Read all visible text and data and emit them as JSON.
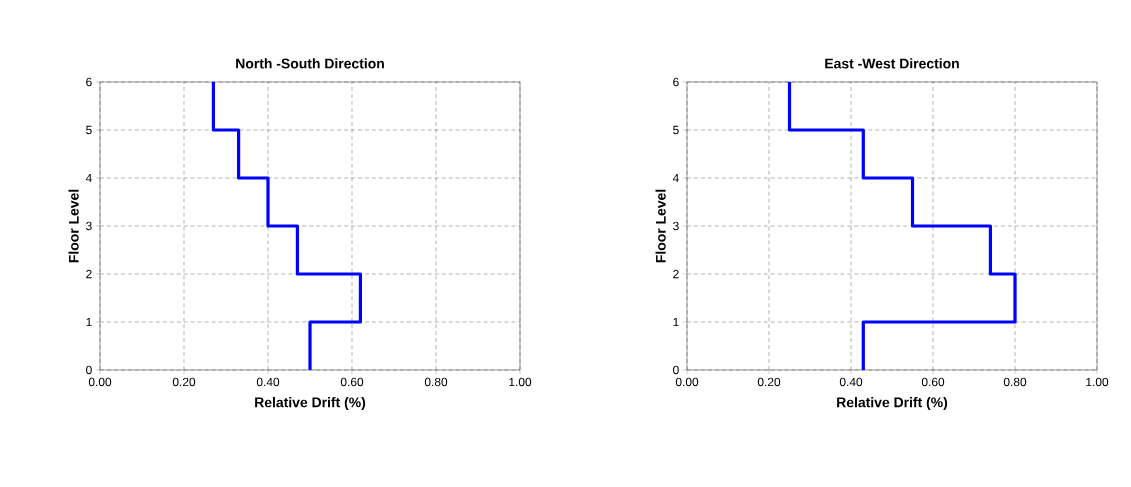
{
  "chart_data": [
    {
      "type": "line",
      "title": "North -South Direction",
      "xlabel": "Relative Drift (%)",
      "ylabel": "Floor Level",
      "x": [
        0.5,
        0.5,
        0.62,
        0.62,
        0.47,
        0.47,
        0.4,
        0.4,
        0.33,
        0.33,
        0.27,
        0.27
      ],
      "values": [
        0,
        1,
        1,
        2,
        2,
        3,
        3,
        4,
        4,
        5,
        5,
        6
      ],
      "color": "#0000ff",
      "line_style": "solid",
      "grid": true,
      "xlim": [
        0,
        1
      ],
      "ylim": [
        0,
        6
      ],
      "xticks": [
        {
          "value": 0,
          "label": "0.00"
        },
        {
          "value": 0.2,
          "label": "0.20"
        },
        {
          "value": 0.4,
          "label": "0.40"
        },
        {
          "value": 0.6,
          "label": "0.60"
        },
        {
          "value": 0.8,
          "label": "0.80"
        },
        {
          "value": 1,
          "label": "1.00"
        }
      ],
      "yticks": [
        0,
        1,
        2,
        3,
        4,
        5,
        6
      ]
    },
    {
      "type": "line",
      "title": "East -West Direction",
      "xlabel": "Relative Drift (%)",
      "ylabel": "Floor Level",
      "x": [
        0.43,
        0.43,
        0.8,
        0.8,
        0.74,
        0.74,
        0.55,
        0.55,
        0.43,
        0.43,
        0.25,
        0.25
      ],
      "values": [
        0,
        1,
        1,
        2,
        2,
        3,
        3,
        4,
        4,
        5,
        5,
        6
      ],
      "color": "#0000ff",
      "line_style": "solid",
      "grid": true,
      "xlim": [
        0,
        1
      ],
      "ylim": [
        0,
        6
      ],
      "xticks": [
        {
          "value": 0,
          "label": "0.00"
        },
        {
          "value": 0.2,
          "label": "0.20"
        },
        {
          "value": 0.4,
          "label": "0.40"
        },
        {
          "value": 0.6,
          "label": "0.60"
        },
        {
          "value": 0.8,
          "label": "0.80"
        },
        {
          "value": 1,
          "label": "1.00"
        }
      ],
      "yticks": [
        0,
        1,
        2,
        3,
        4,
        5,
        6
      ]
    }
  ]
}
